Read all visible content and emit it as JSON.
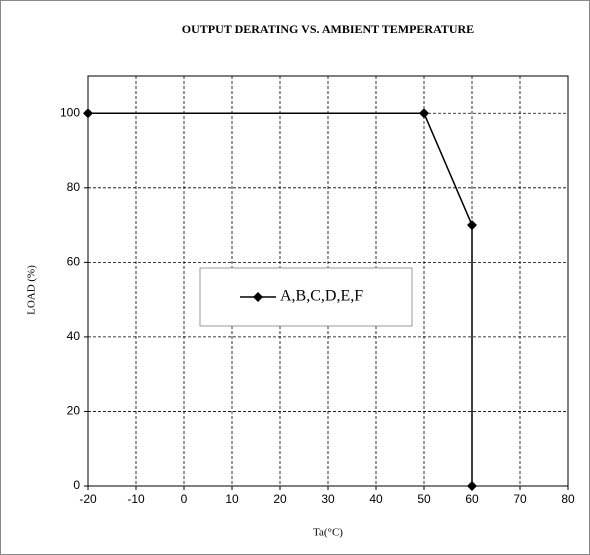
{
  "chart_data": {
    "type": "line",
    "title": "OUTPUT DERATING VS. AMBIENT TEMPERATURE",
    "x_label": "Ta(°C)",
    "y_label": "LOAD (%)",
    "x": [
      -20,
      50,
      60,
      60
    ],
    "series": [
      {
        "name": "A,B,C,D,E,F",
        "color": "#000000",
        "values": [
          100,
          100,
          70,
          0
        ]
      }
    ],
    "xlim": [
      -20,
      80
    ],
    "xticks": [
      -20,
      -10,
      0,
      10,
      20,
      30,
      40,
      50,
      60,
      70,
      80
    ],
    "ylim": [
      0,
      110
    ],
    "yticks": [
      0,
      20,
      40,
      60,
      80,
      100
    ],
    "grid": true,
    "legend": "center"
  }
}
